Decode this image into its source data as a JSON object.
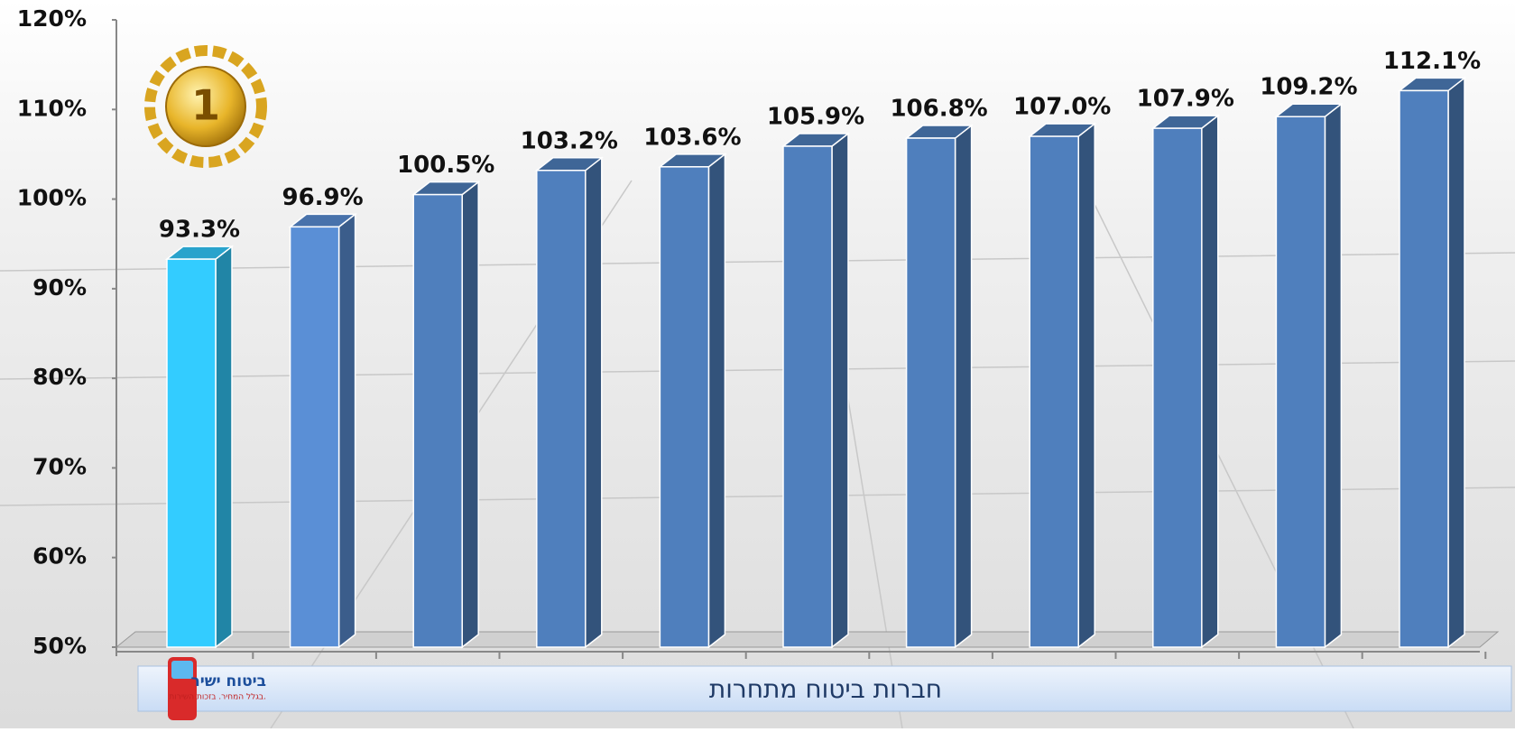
{
  "chart_data": {
    "type": "bar",
    "categories": [
      null,
      null,
      null,
      null,
      null,
      null,
      null,
      null,
      null,
      null,
      null
    ],
    "values": [
      93.3,
      96.9,
      100.5,
      103.2,
      103.6,
      105.9,
      106.8,
      107.0,
      107.9,
      109.2,
      112.1
    ],
    "value_labels": [
      "93.3%",
      "96.9%",
      "100.5%",
      "103.2%",
      "103.6%",
      "105.9%",
      "106.8%",
      "107.0%",
      "107.9%",
      "109.2%",
      "112.1%"
    ],
    "colors": [
      "#33ccff",
      "#5a8fd6",
      "#4f7fbd",
      "#4f7fbd",
      "#4f7fbd",
      "#4f7fbd",
      "#4f7fbd",
      "#4f7fbd",
      "#4f7fbd",
      "#4f7fbd",
      "#4f7fbd"
    ],
    "ylim": [
      50,
      120
    ],
    "yticks": [
      {
        "value": 50,
        "label": "50%"
      },
      {
        "value": 60,
        "label": "60%"
      },
      {
        "value": 70,
        "label": "70%"
      },
      {
        "value": 80,
        "label": "80%"
      },
      {
        "value": 90,
        "label": "90%"
      },
      {
        "value": 100,
        "label": "100%"
      },
      {
        "value": 110,
        "label": "110%"
      },
      {
        "value": 120,
        "label": "120%"
      }
    ],
    "xlabel": "חברות ביטוח מתחרות",
    "annotation": "1",
    "logo": {
      "name": "ביטוח ישיר",
      "tagline": "בגלל המחיר. בזכות השירות."
    }
  }
}
